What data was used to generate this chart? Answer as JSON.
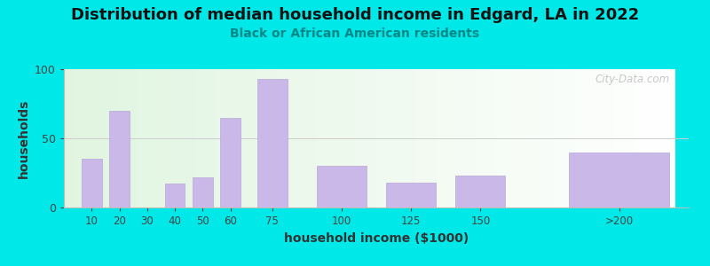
{
  "title": "Distribution of median household income in Edgard, LA in 2022",
  "subtitle": "Black or African American residents",
  "xlabel": "household income ($1000)",
  "ylabel": "households",
  "background_outer": "#00e8e8",
  "bar_color": "#c9b8e8",
  "bar_edge_color": "#b8a8d8",
  "tick_labels": [
    "10",
    "20",
    "30",
    "40",
    "50",
    "60",
    "75",
    "100",
    "125",
    "150",
    ">200"
  ],
  "tick_positions": [
    10,
    20,
    30,
    40,
    50,
    60,
    75,
    100,
    125,
    150,
    200
  ],
  "bar_centers": [
    10,
    20,
    40,
    50,
    60,
    75,
    100,
    125,
    150,
    200
  ],
  "bar_widths": [
    8,
    8,
    8,
    8,
    8,
    12,
    20,
    20,
    20,
    40
  ],
  "values": [
    35,
    70,
    17,
    22,
    65,
    93,
    30,
    18,
    23,
    40
  ],
  "ylim": [
    0,
    100
  ],
  "yticks": [
    0,
    50,
    100
  ],
  "title_fontsize": 13,
  "subtitle_fontsize": 10,
  "axis_label_fontsize": 10,
  "watermark_text": "City-Data.com"
}
